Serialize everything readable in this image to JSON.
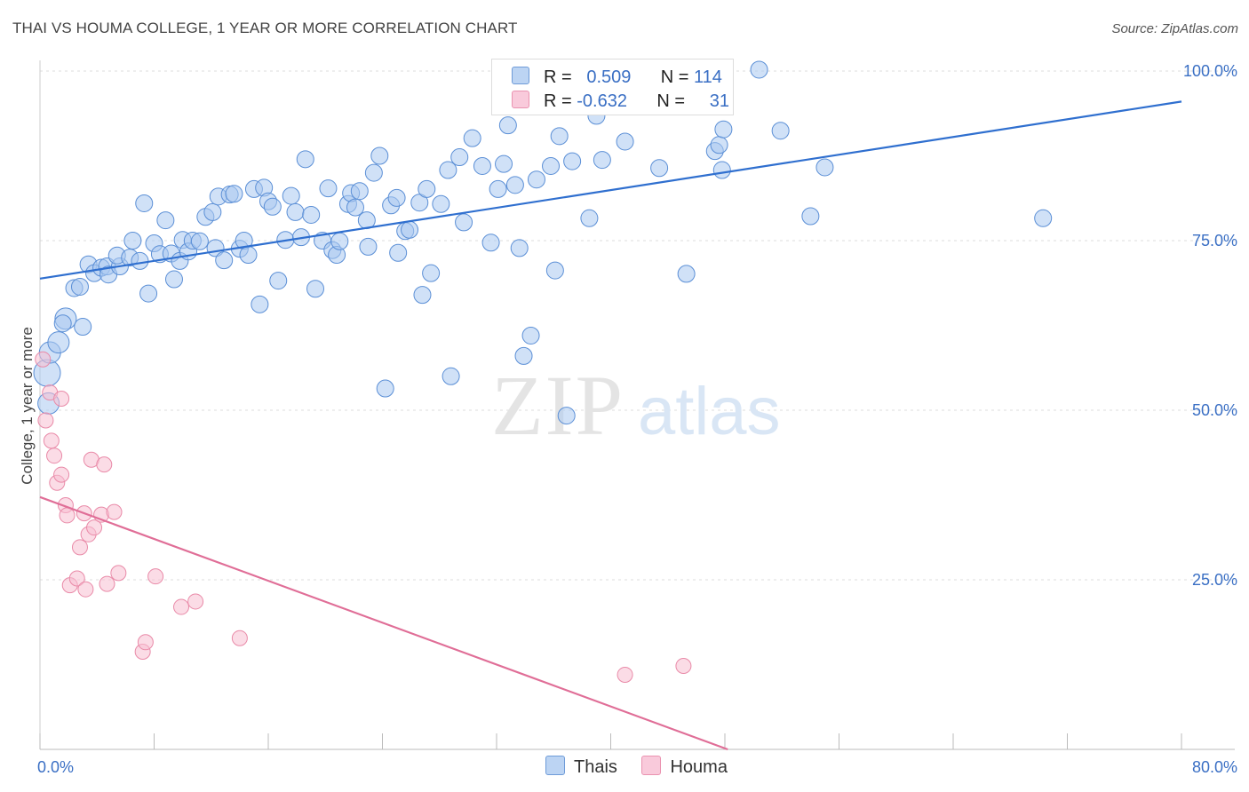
{
  "title": "THAI VS HOUMA COLLEGE, 1 YEAR OR MORE CORRELATION CHART",
  "source": "Source: ZipAtlas.com",
  "watermark": {
    "zip": "ZIP",
    "atlas": "atlas"
  },
  "colors": {
    "thais_fill": "#a9c8f0",
    "thais_stroke": "#5b8fd6",
    "thais_line": "#2f6fcf",
    "houma_fill": "#f7bfd1",
    "houma_stroke": "#e98aa8",
    "houma_line": "#e06e97",
    "tick_label": "#3a6fc4",
    "grid": "#dddddd"
  },
  "legend": {
    "rows": [
      {
        "series": "Thais",
        "r_label": "R =",
        "r_value": "0.509",
        "n_label": "N =",
        "n_value": "114"
      },
      {
        "series": "Houma",
        "r_label": "R =",
        "r_value": "-0.632",
        "n_label": "N =",
        "n_value": "31"
      }
    ]
  },
  "chart_data": {
    "type": "scatter",
    "title": "THAI VS HOUMA COLLEGE, 1 YEAR OR MORE CORRELATION CHART",
    "xlabel": "",
    "ylabel": "College, 1 year or more",
    "xlim": [
      0,
      80
    ],
    "ylim": [
      0,
      100
    ],
    "x_tick_labels": [
      {
        "value": 0,
        "label": "0.0%"
      },
      {
        "value": 80,
        "label": "80.0%"
      }
    ],
    "y_tick_labels": [
      {
        "value": 100,
        "label": "100.0%"
      },
      {
        "value": 75,
        "label": "75.0%"
      },
      {
        "value": 50,
        "label": "50.0%"
      },
      {
        "value": 25,
        "label": "25.0%"
      }
    ],
    "series": [
      {
        "name": "Thais",
        "r": 0.509,
        "n": 114,
        "trend": {
          "x": [
            0,
            80
          ],
          "y": [
            69.4,
            95.5
          ]
        },
        "points": [
          {
            "x": 0.5,
            "y": 55.5,
            "s": 3
          },
          {
            "x": 0.6,
            "y": 51,
            "s": 2
          },
          {
            "x": 0.7,
            "y": 58.5,
            "s": 2
          },
          {
            "x": 1.3,
            "y": 60,
            "s": 2
          },
          {
            "x": 1.8,
            "y": 63.5,
            "s": 2
          },
          {
            "x": 1.6,
            "y": 62.8,
            "s": 1
          },
          {
            "x": 3,
            "y": 62.3,
            "s": 1
          },
          {
            "x": 2.4,
            "y": 68,
            "s": 1
          },
          {
            "x": 2.8,
            "y": 68.2,
            "s": 1
          },
          {
            "x": 3.4,
            "y": 71.5,
            "s": 1
          },
          {
            "x": 3.8,
            "y": 70.2,
            "s": 1
          },
          {
            "x": 4.3,
            "y": 71,
            "s": 1
          },
          {
            "x": 4.7,
            "y": 71.2,
            "s": 1
          },
          {
            "x": 4.8,
            "y": 70,
            "s": 1
          },
          {
            "x": 5.6,
            "y": 71.2,
            "s": 1
          },
          {
            "x": 5.4,
            "y": 72.8,
            "s": 1
          },
          {
            "x": 6.3,
            "y": 72.5,
            "s": 1
          },
          {
            "x": 6.5,
            "y": 75,
            "s": 1
          },
          {
            "x": 7,
            "y": 72,
            "s": 1
          },
          {
            "x": 7.3,
            "y": 80.5,
            "s": 1
          },
          {
            "x": 7.6,
            "y": 67.2,
            "s": 1
          },
          {
            "x": 8,
            "y": 74.6,
            "s": 1
          },
          {
            "x": 8.4,
            "y": 73,
            "s": 1
          },
          {
            "x": 8.8,
            "y": 78,
            "s": 1
          },
          {
            "x": 9.2,
            "y": 73.1,
            "s": 1
          },
          {
            "x": 9.4,
            "y": 69.3,
            "s": 1
          },
          {
            "x": 9.8,
            "y": 72,
            "s": 1
          },
          {
            "x": 10,
            "y": 75.1,
            "s": 1
          },
          {
            "x": 10.4,
            "y": 73.4,
            "s": 1
          },
          {
            "x": 10.7,
            "y": 75,
            "s": 1
          },
          {
            "x": 11.2,
            "y": 74.9,
            "s": 1
          },
          {
            "x": 11.6,
            "y": 78.5,
            "s": 1
          },
          {
            "x": 12.1,
            "y": 79.2,
            "s": 1
          },
          {
            "x": 12.3,
            "y": 73.9,
            "s": 1
          },
          {
            "x": 12.5,
            "y": 81.5,
            "s": 1
          },
          {
            "x": 12.9,
            "y": 72.1,
            "s": 1
          },
          {
            "x": 13.3,
            "y": 81.8,
            "s": 1
          },
          {
            "x": 13.6,
            "y": 81.9,
            "s": 1
          },
          {
            "x": 14,
            "y": 73.8,
            "s": 1
          },
          {
            "x": 14.3,
            "y": 75,
            "s": 1
          },
          {
            "x": 14.6,
            "y": 72.9,
            "s": 1
          },
          {
            "x": 15,
            "y": 82.6,
            "s": 1
          },
          {
            "x": 15.4,
            "y": 65.6,
            "s": 1
          },
          {
            "x": 15.7,
            "y": 82.8,
            "s": 1
          },
          {
            "x": 16,
            "y": 80.8,
            "s": 1
          },
          {
            "x": 16.3,
            "y": 80,
            "s": 1
          },
          {
            "x": 16.7,
            "y": 69.1,
            "s": 1
          },
          {
            "x": 17.2,
            "y": 75.1,
            "s": 1
          },
          {
            "x": 17.6,
            "y": 81.6,
            "s": 1
          },
          {
            "x": 17.9,
            "y": 79.2,
            "s": 1
          },
          {
            "x": 18.3,
            "y": 75.5,
            "s": 1
          },
          {
            "x": 18.6,
            "y": 87,
            "s": 1
          },
          {
            "x": 19,
            "y": 78.8,
            "s": 1
          },
          {
            "x": 19.3,
            "y": 67.9,
            "s": 1
          },
          {
            "x": 19.8,
            "y": 75,
            "s": 1
          },
          {
            "x": 20.2,
            "y": 82.7,
            "s": 1
          },
          {
            "x": 20.5,
            "y": 73.6,
            "s": 1
          },
          {
            "x": 20.8,
            "y": 72.9,
            "s": 1
          },
          {
            "x": 21,
            "y": 74.9,
            "s": 1
          },
          {
            "x": 21.6,
            "y": 80.4,
            "s": 1
          },
          {
            "x": 21.8,
            "y": 82,
            "s": 1
          },
          {
            "x": 22.1,
            "y": 79.9,
            "s": 1
          },
          {
            "x": 22.4,
            "y": 82.3,
            "s": 1
          },
          {
            "x": 22.9,
            "y": 78,
            "s": 1
          },
          {
            "x": 23,
            "y": 74.1,
            "s": 1
          },
          {
            "x": 23.4,
            "y": 85,
            "s": 1
          },
          {
            "x": 23.8,
            "y": 87.5,
            "s": 1
          },
          {
            "x": 24.2,
            "y": 53.2,
            "s": 1
          },
          {
            "x": 24.6,
            "y": 80.2,
            "s": 1
          },
          {
            "x": 25,
            "y": 81.3,
            "s": 1
          },
          {
            "x": 25.1,
            "y": 73.2,
            "s": 1
          },
          {
            "x": 25.6,
            "y": 76.4,
            "s": 1
          },
          {
            "x": 25.9,
            "y": 76.6,
            "s": 1
          },
          {
            "x": 26.6,
            "y": 80.6,
            "s": 1
          },
          {
            "x": 26.8,
            "y": 67,
            "s": 1
          },
          {
            "x": 27.1,
            "y": 82.6,
            "s": 1
          },
          {
            "x": 27.4,
            "y": 70.2,
            "s": 1
          },
          {
            "x": 28.1,
            "y": 80.4,
            "s": 1
          },
          {
            "x": 28.6,
            "y": 85.4,
            "s": 1
          },
          {
            "x": 28.8,
            "y": 55,
            "s": 1
          },
          {
            "x": 29.4,
            "y": 87.3,
            "s": 1
          },
          {
            "x": 29.7,
            "y": 77.7,
            "s": 1
          },
          {
            "x": 30.3,
            "y": 90.1,
            "s": 1
          },
          {
            "x": 31,
            "y": 86,
            "s": 1
          },
          {
            "x": 31.6,
            "y": 74.7,
            "s": 1
          },
          {
            "x": 32.1,
            "y": 82.6,
            "s": 1
          },
          {
            "x": 32.5,
            "y": 86.3,
            "s": 1
          },
          {
            "x": 32.8,
            "y": 92,
            "s": 1
          },
          {
            "x": 33.3,
            "y": 83.2,
            "s": 1
          },
          {
            "x": 33.6,
            "y": 73.9,
            "s": 1
          },
          {
            "x": 33.9,
            "y": 58,
            "s": 1
          },
          {
            "x": 34.4,
            "y": 61,
            "s": 1
          },
          {
            "x": 34.8,
            "y": 84,
            "s": 1
          },
          {
            "x": 35.8,
            "y": 86,
            "s": 1
          },
          {
            "x": 36.1,
            "y": 70.6,
            "s": 1
          },
          {
            "x": 36.4,
            "y": 90.4,
            "s": 1
          },
          {
            "x": 36.9,
            "y": 49.2,
            "s": 1
          },
          {
            "x": 37.3,
            "y": 86.7,
            "s": 1
          },
          {
            "x": 38.5,
            "y": 78.3,
            "s": 1
          },
          {
            "x": 39,
            "y": 93.4,
            "s": 1
          },
          {
            "x": 39.4,
            "y": 86.9,
            "s": 1
          },
          {
            "x": 41,
            "y": 89.6,
            "s": 1
          },
          {
            "x": 43.4,
            "y": 85.7,
            "s": 1
          },
          {
            "x": 45.3,
            "y": 70.1,
            "s": 1
          },
          {
            "x": 47.3,
            "y": 88.2,
            "s": 1
          },
          {
            "x": 47.6,
            "y": 89.1,
            "s": 1
          },
          {
            "x": 47.8,
            "y": 85.4,
            "s": 1
          },
          {
            "x": 47.9,
            "y": 91.4,
            "s": 1
          },
          {
            "x": 50.4,
            "y": 100.2,
            "s": 1
          },
          {
            "x": 51.9,
            "y": 91.2,
            "s": 1
          },
          {
            "x": 54,
            "y": 78.6,
            "s": 1
          },
          {
            "x": 55,
            "y": 85.8,
            "s": 1
          },
          {
            "x": 70.3,
            "y": 78.3,
            "s": 1
          }
        ]
      },
      {
        "name": "Houma",
        "r": -0.632,
        "n": 31,
        "trend": {
          "x": [
            0,
            48.2
          ],
          "y": [
            37.2,
            0
          ]
        },
        "points": [
          {
            "x": 0.2,
            "y": 57.5
          },
          {
            "x": 0.4,
            "y": 48.5
          },
          {
            "x": 0.7,
            "y": 52.6
          },
          {
            "x": 0.8,
            "y": 45.5
          },
          {
            "x": 1,
            "y": 43.3
          },
          {
            "x": 1.2,
            "y": 39.3
          },
          {
            "x": 1.5,
            "y": 51.7
          },
          {
            "x": 1.5,
            "y": 40.5
          },
          {
            "x": 1.8,
            "y": 36
          },
          {
            "x": 1.9,
            "y": 34.5
          },
          {
            "x": 2.1,
            "y": 24.2
          },
          {
            "x": 2.6,
            "y": 25.2
          },
          {
            "x": 2.8,
            "y": 29.8
          },
          {
            "x": 3.1,
            "y": 34.8
          },
          {
            "x": 3.2,
            "y": 23.6
          },
          {
            "x": 3.4,
            "y": 31.7
          },
          {
            "x": 3.6,
            "y": 42.7
          },
          {
            "x": 3.8,
            "y": 32.7
          },
          {
            "x": 4.3,
            "y": 34.6
          },
          {
            "x": 4.5,
            "y": 42
          },
          {
            "x": 4.7,
            "y": 24.4
          },
          {
            "x": 5.2,
            "y": 35
          },
          {
            "x": 5.5,
            "y": 26
          },
          {
            "x": 7.2,
            "y": 14.4
          },
          {
            "x": 7.4,
            "y": 15.8
          },
          {
            "x": 8.1,
            "y": 25.5
          },
          {
            "x": 9.9,
            "y": 21
          },
          {
            "x": 10.9,
            "y": 21.8
          },
          {
            "x": 14,
            "y": 16.4
          },
          {
            "x": 41,
            "y": 11
          },
          {
            "x": 45.1,
            "y": 12.3
          }
        ]
      }
    ]
  }
}
